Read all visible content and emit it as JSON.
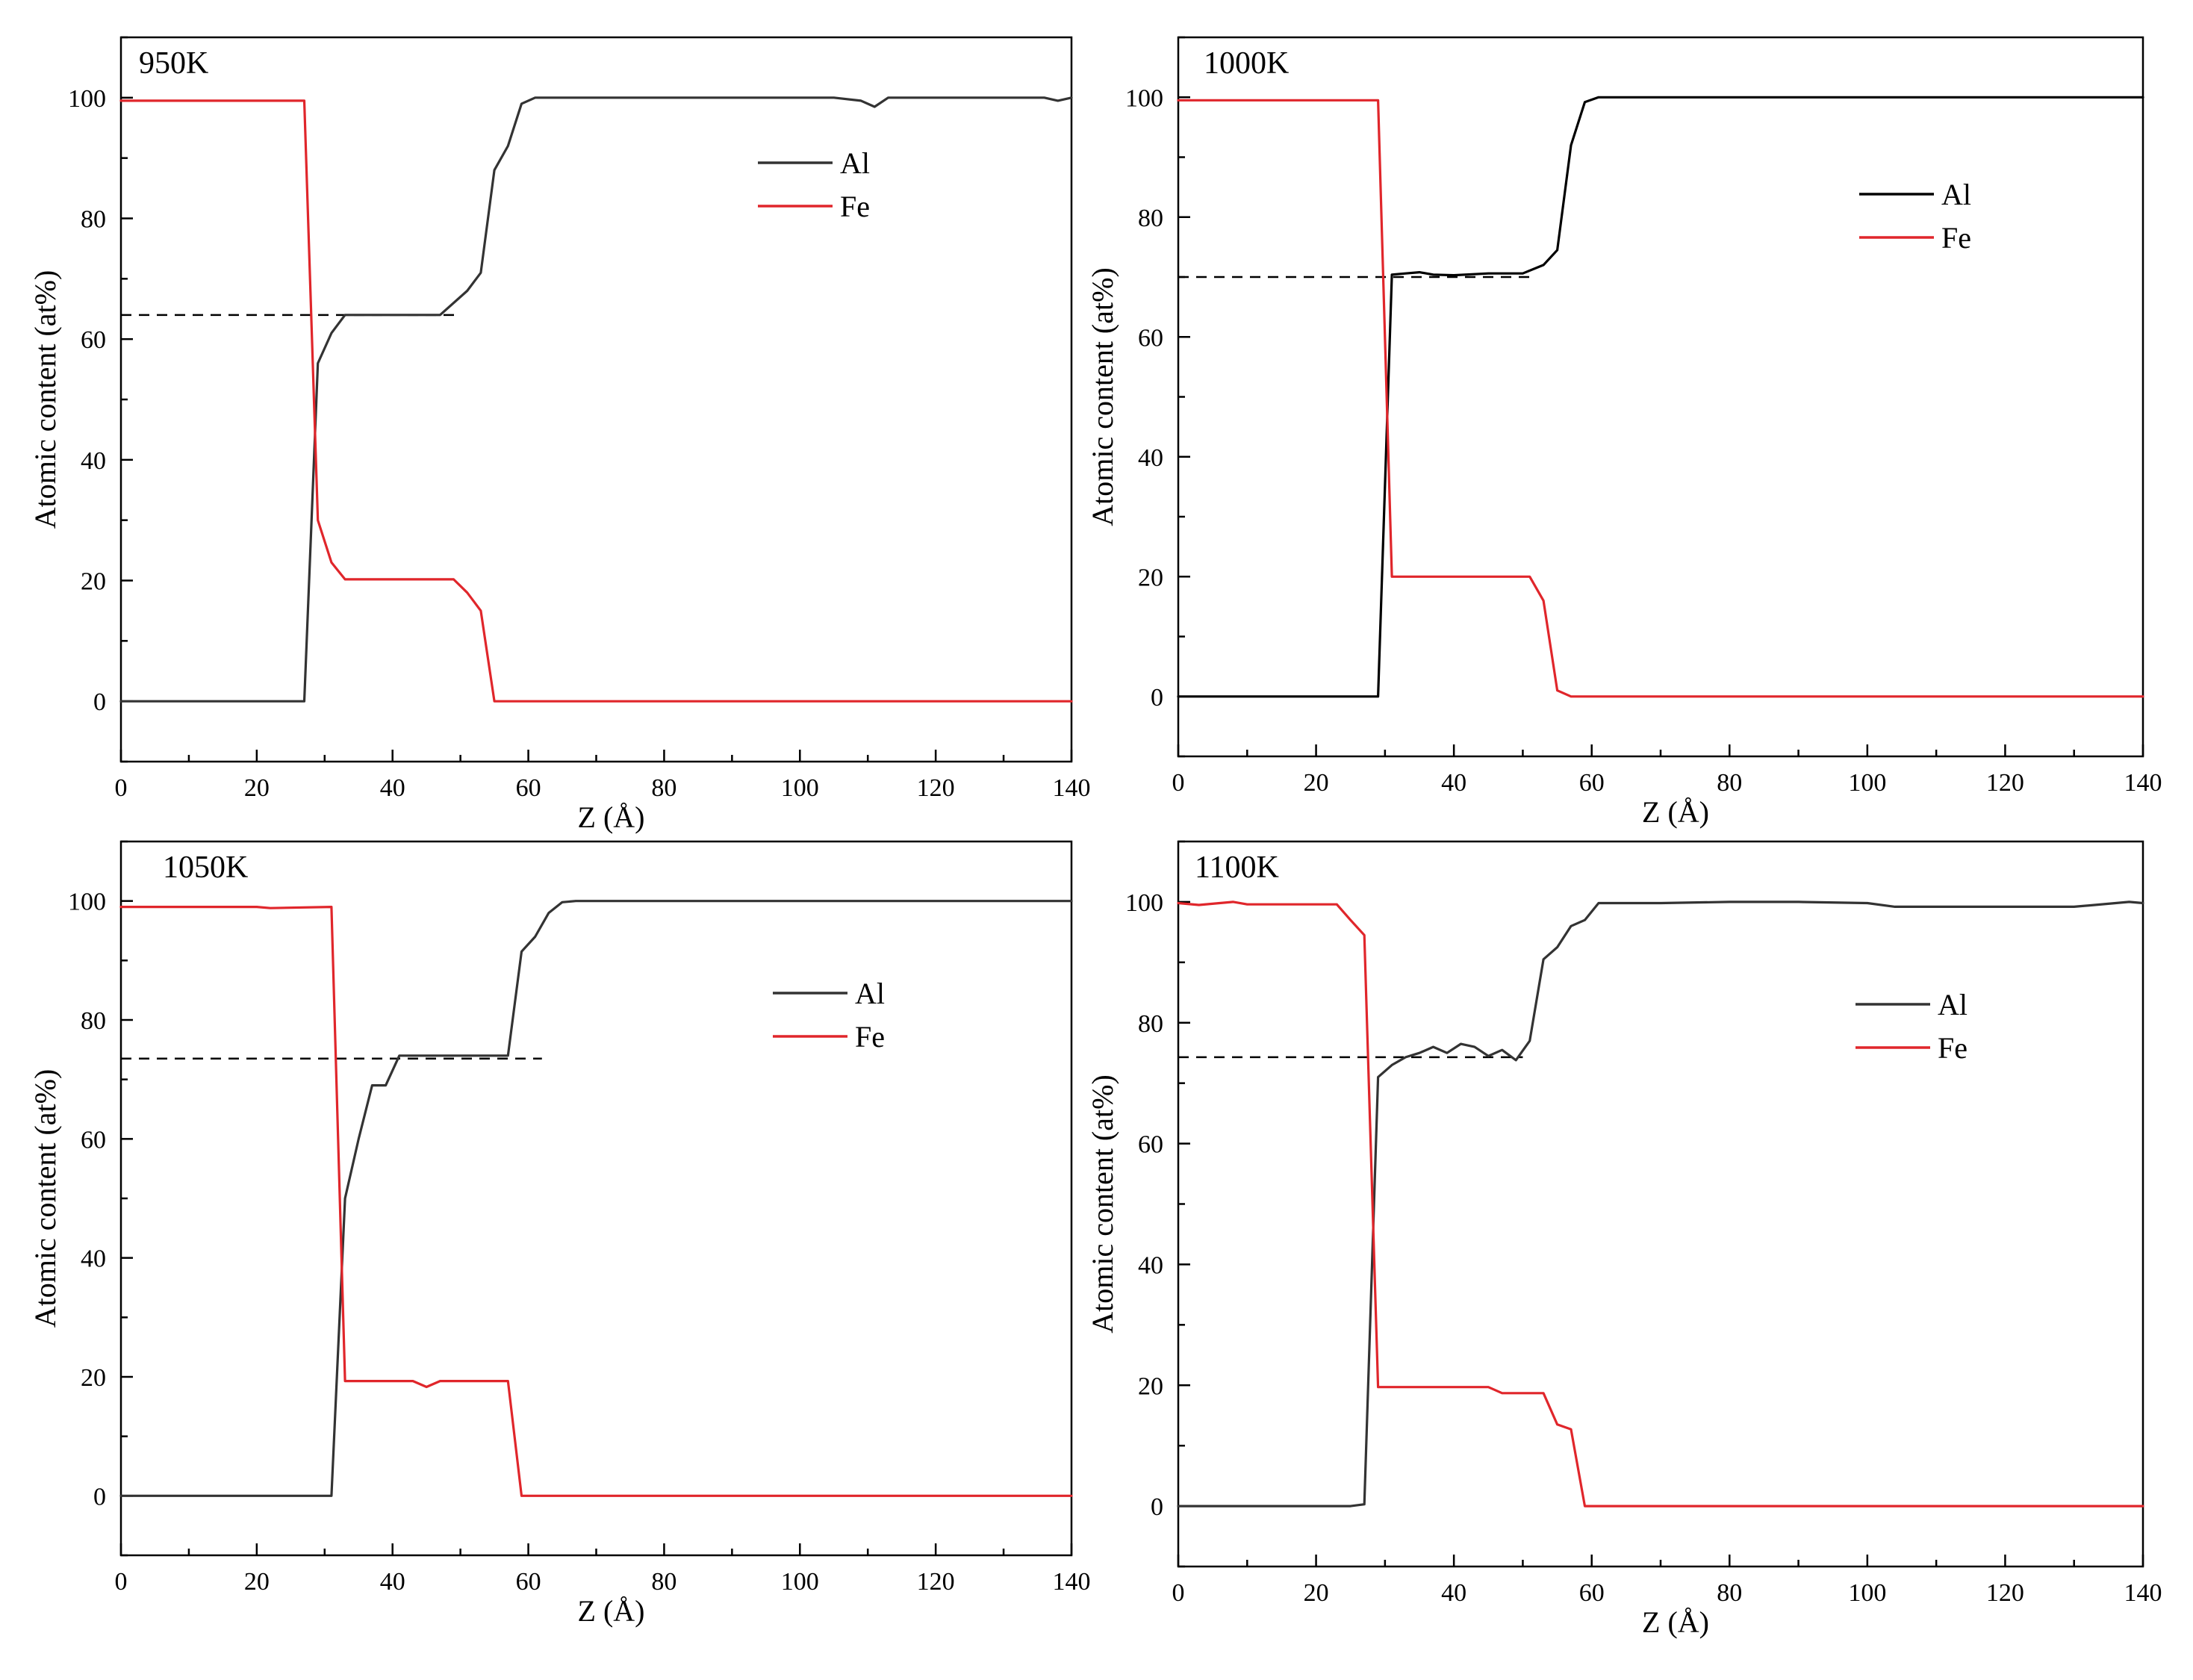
{
  "colors": {
    "al": "#333333",
    "fe": "#e0262b",
    "ref": "#000000",
    "axis": "#000000"
  },
  "chart_data": [
    {
      "type": "line",
      "label": "950K",
      "xlabel": "Z (Å)",
      "ylabel": "Atomic content (at%)",
      "xlim": [
        0,
        140
      ],
      "ylim": [
        -10,
        110
      ],
      "xticks": [
        0,
        20,
        40,
        60,
        80,
        100,
        120,
        140
      ],
      "xtick_labels": [
        "0",
        "20",
        "40",
        "60",
        "80",
        "100",
        "120",
        "140"
      ],
      "yticks": [
        0,
        20,
        40,
        60,
        80,
        100
      ],
      "ytick_labels": [
        "0",
        "20",
        "40",
        "60",
        "80",
        "100"
      ],
      "legend": [
        "Al",
        "Fe"
      ],
      "legend_position": "top-right",
      "reference_line": {
        "y": 64,
        "x": [
          0,
          50
        ]
      },
      "series": [
        {
          "name": "Al",
          "color": "#333333",
          "x": [
            0,
            27,
            29,
            31,
            33,
            35,
            40,
            47,
            51,
            53,
            55,
            57,
            59,
            61,
            70,
            80,
            90,
            100,
            105,
            109,
            111,
            113,
            120,
            130,
            136,
            138,
            140
          ],
          "y": [
            0,
            0,
            56,
            61,
            64,
            64,
            64,
            64,
            68,
            71,
            88,
            92,
            99,
            100,
            100,
            100,
            100,
            100,
            100,
            99.5,
            98.5,
            100,
            100,
            100,
            100,
            99.5,
            100
          ]
        },
        {
          "name": "Fe",
          "color": "#e0262b",
          "x": [
            0,
            27,
            29,
            31,
            33,
            35,
            40,
            49,
            51,
            53,
            55,
            60,
            80,
            100,
            120,
            140
          ],
          "y": [
            99.5,
            99.5,
            30,
            23,
            20.2,
            20.2,
            20.2,
            20.2,
            18,
            15,
            0,
            0,
            0,
            0,
            0,
            0
          ]
        }
      ]
    },
    {
      "type": "line",
      "label": "1000K",
      "xlabel": "Z (Å)",
      "ylabel": "Atomic content (at%)",
      "xlim": [
        0,
        140
      ],
      "ylim": [
        -10,
        110
      ],
      "xticks": [
        0,
        20,
        40,
        60,
        80,
        100,
        120,
        140
      ],
      "xtick_labels": [
        "0",
        "20",
        "40",
        "60",
        "80",
        "100",
        "120",
        "140"
      ],
      "yticks": [
        0,
        20,
        40,
        60,
        80,
        100
      ],
      "ytick_labels": [
        "0",
        "20",
        "40",
        "60",
        "80",
        "100"
      ],
      "legend": [
        "Al",
        "Fe"
      ],
      "legend_position": "top-right",
      "reference_line": {
        "y": 70,
        "x": [
          0,
          51
        ]
      },
      "series": [
        {
          "name": "Al",
          "color": "#000000",
          "x": [
            0,
            29,
            31,
            33,
            35,
            37,
            40,
            45,
            50,
            53,
            55,
            57,
            59,
            61,
            80,
            100,
            120,
            140
          ],
          "y": [
            0,
            0,
            70.4,
            70.6,
            70.8,
            70.4,
            70.3,
            70.6,
            70.6,
            72,
            74.5,
            92,
            99.2,
            100,
            100,
            100,
            100,
            100
          ]
        },
        {
          "name": "Fe",
          "color": "#e0262b",
          "x": [
            0,
            29,
            31,
            33,
            40,
            51,
            53,
            55,
            57,
            60,
            80,
            100,
            120,
            140
          ],
          "y": [
            99.5,
            99.5,
            20,
            20,
            20,
            20,
            16,
            1,
            0,
            0,
            0,
            0,
            0,
            0
          ]
        }
      ]
    },
    {
      "type": "line",
      "label": "1050K",
      "xlabel": "Z (Å)",
      "ylabel": "Atomic content (at%)",
      "xlim": [
        0,
        140
      ],
      "ylim": [
        -10,
        110
      ],
      "xticks": [
        0,
        20,
        40,
        60,
        80,
        100,
        120,
        140
      ],
      "xtick_labels": [
        "0",
        "20",
        "40",
        "60",
        "80",
        "100",
        "120",
        "140"
      ],
      "yticks": [
        0,
        20,
        40,
        60,
        80,
        100
      ],
      "ytick_labels": [
        "0",
        "20",
        "40",
        "60",
        "80",
        "100"
      ],
      "legend": [
        "Al",
        "Fe"
      ],
      "legend_position": "top-right",
      "reference_line": {
        "y": 73.5,
        "x": [
          0,
          62
        ]
      },
      "series": [
        {
          "name": "Al",
          "color": "#333333",
          "x": [
            0,
            31,
            33,
            35,
            37,
            39,
            41,
            45,
            50,
            57,
            59,
            61,
            63,
            65,
            67,
            80,
            100,
            120,
            140
          ],
          "y": [
            0,
            0,
            50,
            60,
            69,
            69,
            74,
            74,
            74,
            74,
            91.5,
            94,
            98,
            99.8,
            100,
            100,
            100,
            100,
            100
          ]
        },
        {
          "name": "Fe",
          "color": "#e0262b",
          "x": [
            0,
            20,
            22,
            31,
            33,
            35,
            43,
            45,
            47,
            50,
            57,
            59,
            61,
            80,
            100,
            120,
            140
          ],
          "y": [
            99,
            99,
            98.8,
            99,
            19.3,
            19.3,
            19.3,
            18.3,
            19.3,
            19.3,
            19.3,
            0,
            0,
            0,
            0,
            0,
            0
          ]
        }
      ]
    },
    {
      "type": "line",
      "label": "1100K",
      "xlabel": "Z (Å)",
      "ylabel": "Atomic content (at%)",
      "xlim": [
        0,
        140
      ],
      "ylim": [
        -10,
        110
      ],
      "xticks": [
        0,
        20,
        40,
        60,
        80,
        100,
        120,
        140
      ],
      "xtick_labels": [
        "0",
        "20",
        "40",
        "60",
        "80",
        "100",
        "120",
        "140"
      ],
      "yticks": [
        0,
        20,
        40,
        60,
        80,
        100
      ],
      "ytick_labels": [
        "0",
        "20",
        "40",
        "60",
        "80",
        "100"
      ],
      "legend": [
        "Al",
        "Fe"
      ],
      "legend_position": "top-right",
      "reference_line": {
        "y": 74.3,
        "x": [
          0,
          50
        ]
      },
      "series": [
        {
          "name": "Al",
          "color": "#333333",
          "x": [
            0,
            25,
            27,
            29,
            31,
            33,
            35,
            37,
            39,
            41,
            43,
            45,
            47,
            49,
            51,
            53,
            55,
            57,
            59,
            61,
            70,
            80,
            90,
            100,
            104,
            120,
            130,
            133,
            138,
            140
          ],
          "y": [
            0,
            0,
            0.3,
            71,
            73,
            74.3,
            75,
            76,
            75,
            76.5,
            76,
            74.5,
            75.5,
            73.8,
            77,
            90.5,
            92.5,
            96,
            97,
            99.8,
            99.8,
            100,
            100,
            99.8,
            99.2,
            99.2,
            99.2,
            99.5,
            100,
            99.8
          ]
        },
        {
          "name": "Fe",
          "color": "#e0262b",
          "x": [
            0,
            3,
            6,
            8,
            10,
            20,
            23,
            25,
            27,
            29,
            31,
            40,
            45,
            47,
            53,
            55,
            57,
            59,
            61,
            80,
            100,
            120,
            140
          ],
          "y": [
            99.8,
            99.5,
            99.8,
            100,
            99.6,
            99.6,
            99.6,
            97,
            94.5,
            19.7,
            19.7,
            19.7,
            19.7,
            18.7,
            18.7,
            13.5,
            12.7,
            0,
            0,
            0,
            0,
            0,
            0
          ]
        }
      ]
    }
  ]
}
